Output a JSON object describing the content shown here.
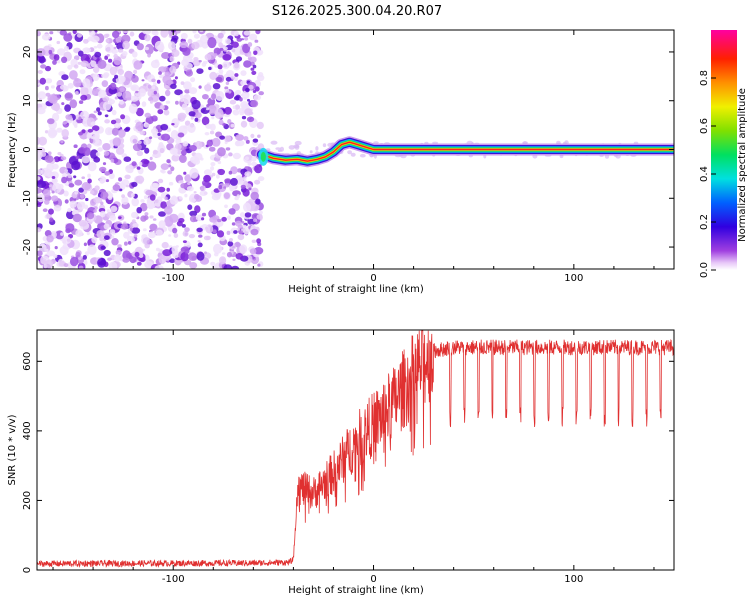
{
  "title": "S126.2025.300.04.20.R07",
  "colors": {
    "snr_line": "#e03030",
    "frame": "#000000",
    "background": "#ffffff"
  },
  "chart_data": [
    {
      "type": "heatmap",
      "name": "spectrogram",
      "xlabel": "Height of straight line (km)",
      "ylabel": "Frequency (Hz)",
      "xlim": [
        -168,
        150
      ],
      "ylim": [
        -24.5,
        24.5
      ],
      "xticks": [
        -100,
        0,
        100
      ],
      "xtick_labels": [
        "-100",
        "0",
        "100"
      ],
      "yticks": [
        -20,
        -10,
        0,
        10,
        20
      ],
      "ytick_labels": [
        "-20",
        "-10",
        "0",
        "10",
        "20"
      ],
      "noise_region_x": [
        -168,
        -56
      ],
      "signal_start_x": -56,
      "carrier_track": {
        "x": [
          -56,
          -50,
          -44,
          -38,
          -33,
          -28,
          -24,
          -20,
          -16,
          -12,
          -8,
          -4,
          0,
          5,
          10,
          20,
          40,
          60,
          80,
          100,
          120,
          140,
          150
        ],
        "freq": [
          -1.0,
          -1.8,
          -2.2,
          -2.0,
          -2.4,
          -2.0,
          -1.5,
          -0.5,
          1.0,
          1.5,
          1.0,
          0.5,
          0.0,
          0.0,
          0.0,
          0.0,
          0.0,
          0.0,
          0.0,
          0.0,
          0.0,
          0.0,
          0.0
        ]
      },
      "colorbar": {
        "label": "Normalized spectral amplitude",
        "range": [
          0,
          1
        ],
        "ticks": [
          0.0,
          0.2,
          0.4,
          0.6,
          0.8
        ],
        "tick_labels": [
          "0.0",
          "0.2",
          "0.4",
          "0.6",
          "0.8"
        ]
      }
    },
    {
      "type": "line",
      "name": "snr",
      "xlabel": "Height of straight line (km)",
      "ylabel": "SNR (10 * v/v)",
      "xlim": [
        -168,
        150
      ],
      "ylim": [
        0,
        690
      ],
      "xticks": [
        -100,
        0,
        100
      ],
      "xtick_labels": [
        "-100",
        "0",
        "100"
      ],
      "yticks": [
        0,
        200,
        400,
        600
      ],
      "ytick_labels": [
        "0",
        "200",
        "400",
        "600"
      ],
      "series": [
        {
          "name": "SNR",
          "envelope_x": [
            -168,
            -60,
            -42,
            -40,
            -38,
            -30,
            -20,
            -10,
            0,
            10,
            20,
            25,
            30,
            40,
            60,
            80,
            100,
            120,
            140,
            150
          ],
          "envelope_y": [
            18,
            20,
            22,
            30,
            240,
            220,
            280,
            360,
            420,
            480,
            560,
            600,
            630,
            640,
            640,
            640,
            640,
            640,
            640,
            640
          ],
          "dropouts_start_x": 38,
          "dropouts_spacing_km": 7,
          "dropout_level": 440
        }
      ]
    }
  ]
}
